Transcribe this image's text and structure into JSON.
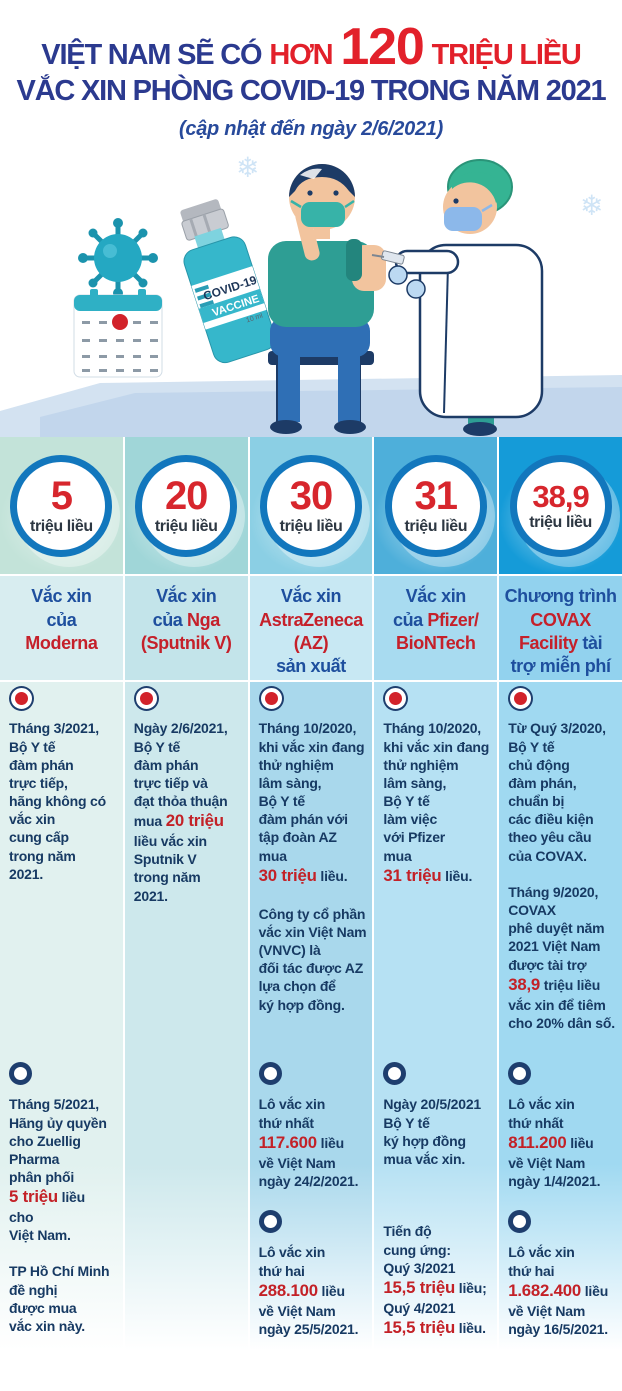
{
  "palette": {
    "title_blue": "#2b3a8f",
    "title_red": "#e2202a",
    "header_blue": "#1e4f9e",
    "emphasis_red": "#c32127",
    "body_navy": "#173a63",
    "badge_ring_blue": "#1277bd",
    "column_tops": [
      "#c3e3d9",
      "#a0d6d8",
      "#8bcfe4",
      "#4eafda",
      "#159bd8"
    ]
  },
  "title": {
    "l1_blue": "VIỆT NAM SẼ CÓ",
    "l1_red1": "HƠN",
    "l1_big": "120",
    "l1_red2": "TRIỆU LIỀU",
    "line2": "VẮC XIN PHÒNG COVID-19 TRONG NĂM 2021",
    "subtitle": "(cập nhật đến ngày 2/6/2021)"
  },
  "illustration": {
    "bottle_label1": "COVID-19",
    "bottle_label2": "VACCINE",
    "bottle_volume": "10 ml"
  },
  "columns": [
    {
      "amount": "5",
      "unit": "triệu liều",
      "title": [
        {
          "t": "Vắc xin\ncủa\n"
        },
        {
          "t": "Moderna",
          "red": true
        }
      ],
      "blocks": [
        {
          "paras": [
            [
              {
                "t": "Tháng 3/2021,\nBộ Y tế\nđàm phán\ntrực tiếp,\nhãng không có\nvắc xin\ncung cấp\ntrong năm\n2021."
              }
            ]
          ]
        },
        {
          "paras": [
            [
              {
                "t": "Tháng 5/2021,\nHãng ủy quyền\ncho Zuellig\nPharma\nphân phối\n"
              },
              {
                "t": "5 triệu",
                "red": true
              },
              {
                "t": " liều\ncho\nViệt Nam."
              }
            ],
            [
              {
                "t": "TP Hồ Chí Minh\nđề nghị\nđược mua\nvắc xin này."
              }
            ]
          ]
        }
      ]
    },
    {
      "amount": "20",
      "unit": "triệu liều",
      "title": [
        {
          "t": "Vắc xin\ncủa "
        },
        {
          "t": "Nga\n(Sputnik V)",
          "red": true
        }
      ],
      "blocks": [
        {
          "paras": [
            [
              {
                "t": "Ngày 2/6/2021,\nBộ Y tế\nđàm phán\ntrực tiếp và\nđạt thỏa thuận\nmua "
              },
              {
                "t": "20 triệu",
                "red": true
              },
              {
                "t": "\nliều vắc xin\nSputnik V\ntrong năm\n2021."
              }
            ]
          ]
        }
      ]
    },
    {
      "amount": "30",
      "unit": "triệu liều",
      "title": [
        {
          "t": "Vắc xin\n"
        },
        {
          "t": "AstraZeneca\n(AZ)",
          "red": true
        },
        {
          "t": "\nsản xuất"
        }
      ],
      "blocks": [
        {
          "paras": [
            [
              {
                "t": "Tháng 10/2020,\nkhi vắc xin đang\nthử nghiệm\nlâm sàng,\nBộ Y tế\nđàm phán với\ntập đoàn AZ\nmua\n"
              },
              {
                "t": "30 triệu",
                "red": true
              },
              {
                "t": " liều."
              }
            ],
            [
              {
                "t": "Công ty cổ phần\nvắc xin Việt Nam\n(VNVC) là\nđối tác được AZ\nlựa chọn để\nký hợp đồng."
              }
            ]
          ]
        },
        {
          "paras": [
            [
              {
                "t": "Lô vắc xin\nthứ nhất\n"
              },
              {
                "t": "117.600",
                "red": true
              },
              {
                "t": " liều\nvề Việt Nam\nngày 24/2/2021."
              }
            ]
          ]
        },
        {
          "paras": [
            [
              {
                "t": "Lô vắc xin\nthứ hai\n"
              },
              {
                "t": "288.100",
                "red": true
              },
              {
                "t": " liều\nvề Việt Nam\nngày 25/5/2021."
              }
            ]
          ]
        }
      ]
    },
    {
      "amount": "31",
      "unit": "triệu liều",
      "title": [
        {
          "t": "Vắc xin\ncủa "
        },
        {
          "t": "Pfizer/\nBioNTech",
          "red": true
        }
      ],
      "blocks": [
        {
          "paras": [
            [
              {
                "t": "Tháng 10/2020,\nkhi vắc xin đang\nthử nghiệm\nlâm sàng,\nBộ Y tế\nlàm việc\nvới Pfizer\nmua\n"
              },
              {
                "t": "31 triệu",
                "red": true
              },
              {
                "t": " liều."
              }
            ]
          ]
        },
        {
          "paras": [
            [
              {
                "t": "Ngày 20/5/2021\nBộ Y tế\nký hợp đồng\nmua vắc xin."
              }
            ]
          ]
        },
        {
          "paras": [
            [
              {
                "t": "Tiến độ\ncung ứng:\nQuý 3/2021\n"
              },
              {
                "t": "15,5 triệu",
                "red": true
              },
              {
                "t": " liều;\nQuý 4/2021\n"
              },
              {
                "t": "15,5 triệu",
                "red": true
              },
              {
                "t": " liều."
              }
            ]
          ]
        }
      ]
    },
    {
      "amount": "38,9",
      "unit": "triệu liều",
      "title": [
        {
          "t": "Chương trình\n"
        },
        {
          "t": "COVAX\nFacility",
          "red": true
        },
        {
          "t": " tài\ntrợ miễn phí"
        }
      ],
      "blocks": [
        {
          "paras": [
            [
              {
                "t": "Từ Quý 3/2020,\nBộ Y tế\nchủ động\nđàm phán,\nchuẩn bị\ncác điều kiện\ntheo yêu cầu\ncủa COVAX."
              }
            ],
            [
              {
                "t": "Tháng 9/2020,\nCOVAX\nphê duyệt năm\n2021 Việt Nam\nđược tài trợ\n"
              },
              {
                "t": "38,9",
                "red": true
              },
              {
                "t": " triệu liều\nvắc xin để tiêm\ncho 20% dân số."
              }
            ]
          ]
        },
        {
          "paras": [
            [
              {
                "t": "Lô vắc xin\nthứ nhất\n"
              },
              {
                "t": "811.200",
                "red": true
              },
              {
                "t": " liều\nvề Việt Nam\nngày 1/4/2021."
              }
            ]
          ]
        },
        {
          "paras": [
            [
              {
                "t": "Lô vắc xin\nthứ hai\n"
              },
              {
                "t": "1.682.400",
                "red": true
              },
              {
                "t": " liều\nvề Việt Nam\nngày 16/5/2021."
              }
            ]
          ]
        }
      ]
    }
  ]
}
